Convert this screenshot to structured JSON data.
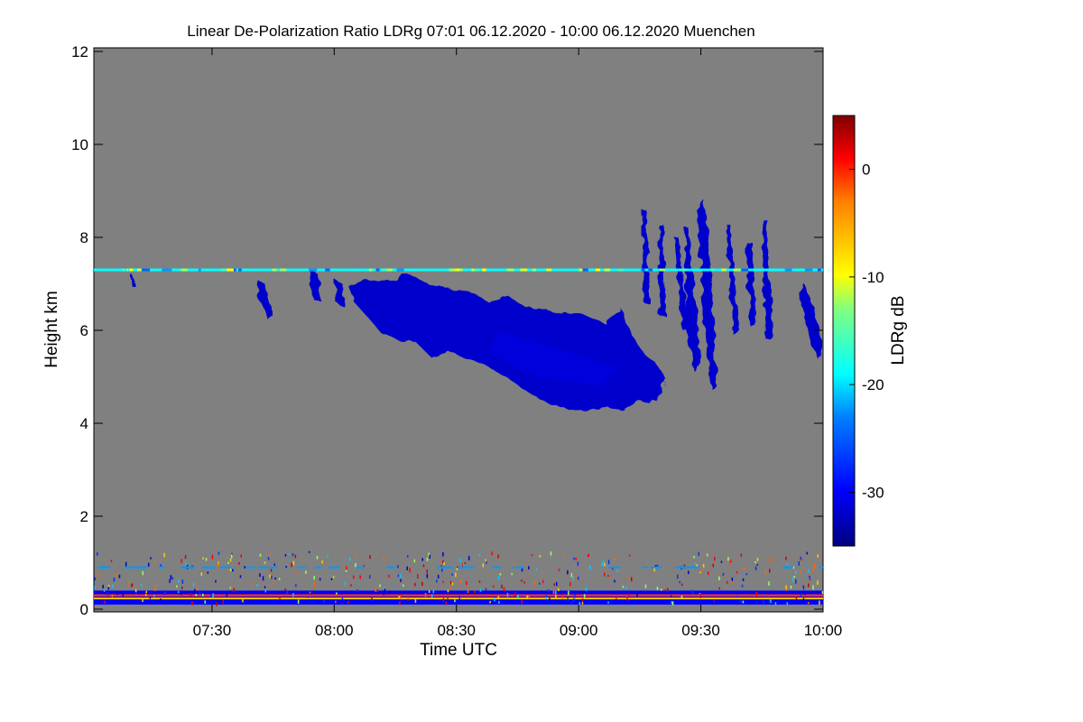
{
  "chart_data": {
    "type": "heatmap",
    "title": "Linear De-Polarization Ratio LDRg   07:01 06.12.2020 - 10:00 06.12.2020 Muenchen",
    "xlabel": "Time UTC",
    "ylabel": "Height km",
    "xlim_minutes": [
      421,
      600
    ],
    "ylim_km": [
      0,
      12
    ],
    "x_ticks": [
      {
        "label": "07:30",
        "value": 450
      },
      {
        "label": "08:00",
        "value": 480
      },
      {
        "label": "08:30",
        "value": 510
      },
      {
        "label": "09:00",
        "value": 540
      },
      {
        "label": "09:30",
        "value": 570
      },
      {
        "label": "10:00",
        "value": 600
      }
    ],
    "y_ticks": [
      {
        "label": "0",
        "value": 0
      },
      {
        "label": "2",
        "value": 2
      },
      {
        "label": "4",
        "value": 4
      },
      {
        "label": "6",
        "value": 6
      },
      {
        "label": "8",
        "value": 8
      },
      {
        "label": "10",
        "value": 10
      },
      {
        "label": "12",
        "value": 12
      }
    ],
    "colorbar": {
      "label": "LDRg dB",
      "range": [
        -35,
        5
      ],
      "ticks": [
        {
          "label": "0",
          "value": 0
        },
        {
          "label": "-10",
          "value": -10
        },
        {
          "label": "-20",
          "value": -20
        },
        {
          "label": "-30",
          "value": -30
        }
      ]
    },
    "background_color": "#808080",
    "features": [
      {
        "name": "main-cloud",
        "time_start": 483,
        "time_end": 562,
        "height_top_km": 7.2,
        "height_base_km": 4.2,
        "ldr_db": -32
      },
      {
        "name": "fall-streaks",
        "time_start": 554,
        "time_end": 600,
        "height_top_km": 8.7,
        "height_base_km": 4.8,
        "ldr_db": -32
      },
      {
        "name": "thin-layer",
        "time_start": 421,
        "time_end": 600,
        "height_km": 7.3,
        "ldr_db": -20
      },
      {
        "name": "boundary-layer",
        "time_start": 421,
        "time_end": 600,
        "height_top_km": 0.4,
        "height_base_km": 0.1,
        "ldr_db": -30
      }
    ]
  }
}
